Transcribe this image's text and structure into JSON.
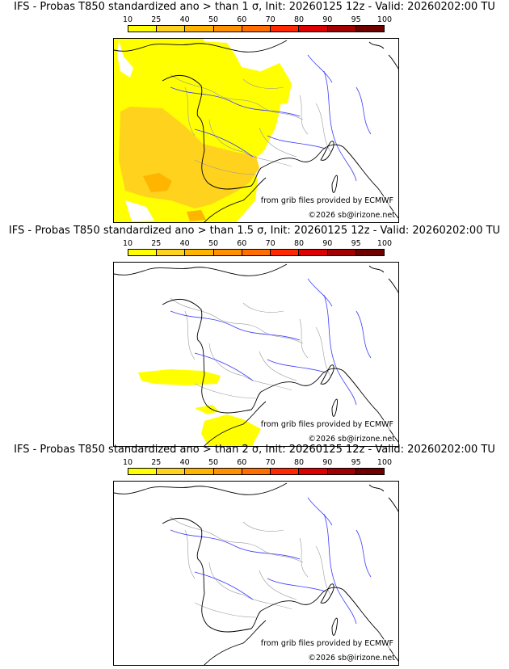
{
  "colors": {
    "levels": [
      "#ffff00",
      "#ffd21e",
      "#ffb400",
      "#ff9100",
      "#ff6e00",
      "#ff2800",
      "#dc0000",
      "#a00000",
      "#6e0000"
    ],
    "rivers": "#3c3cff",
    "coast": "#000000",
    "borders": "#9a9a9a"
  },
  "legend": {
    "ticks": [
      "10",
      "25",
      "40",
      "50",
      "60",
      "70",
      "80",
      "90",
      "95",
      "100"
    ]
  },
  "panels": [
    {
      "title": "IFS - Probas T850  standardized ano > than 1 σ, Init: 20260125 12z - Valid: 20260202:00 TU",
      "source_credit": "from grib files provided by ECMWF",
      "copyright": "©2026 sb@irizone.net"
    },
    {
      "title": "IFS - Probas T850  standardized ano > than 1.5 σ, Init: 20260125 12z - Valid: 20260202:00 TU",
      "source_credit": "from grib files provided by ECMWF",
      "copyright": "©2026 sb@irizone.net"
    },
    {
      "title": "IFS - Probas T850  standardized ano > than 2 σ, Init: 20260125 12z - Valid: 20260202:00 TU",
      "source_credit": "from grib files provided by ECMWF",
      "copyright": "©2026 sb@irizone.net"
    }
  ]
}
